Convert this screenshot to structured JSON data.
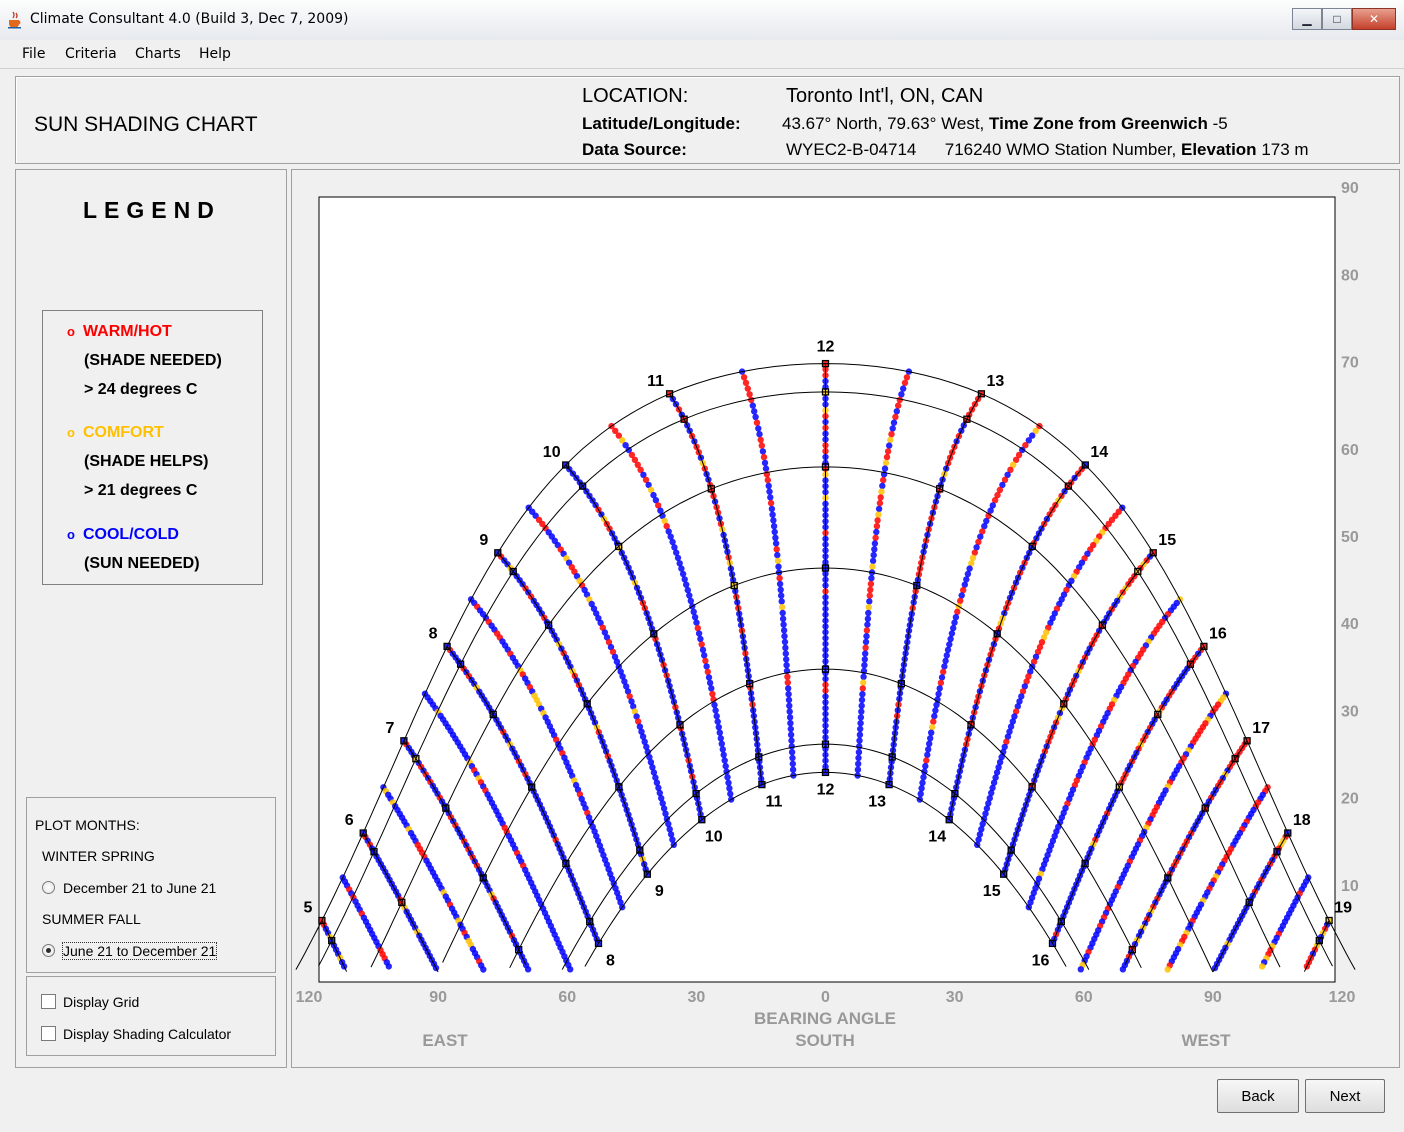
{
  "window": {
    "title": "Climate Consultant 4.0 (Build 3, Dec 7, 2009)",
    "buttons": {
      "minimize_glyph": "▁",
      "maximize_glyph": "□",
      "close_glyph": "✕"
    }
  },
  "menu": [
    "File",
    "Criteria",
    "Charts",
    "Help"
  ],
  "header": {
    "page_title": "SUN SHADING CHART",
    "location_label": "LOCATION:",
    "location_value": "Toronto Int'l, ON, CAN",
    "latlong_label": "Latitude/Longitude:",
    "latlong_value": "43.67° North, 79.63° West,",
    "timezone_label": "Time Zone from Greenwich",
    "timezone_value": "-5",
    "source_label": "Data Source:",
    "source_value": "WYEC2-B-04714",
    "station_value": "716240 WMO Station Number,",
    "elevation_label": "Elevation",
    "elevation_value": "173 m"
  },
  "legend": {
    "title": "LEGEND",
    "items": [
      {
        "label": "WARM/HOT",
        "color": "#ff0000",
        "sub": [
          "(SHADE NEEDED)",
          "> 24 degrees C"
        ]
      },
      {
        "label": "COMFORT",
        "color": "#ffc000",
        "sub": [
          "(SHADE HELPS)",
          "> 21 degrees C"
        ]
      },
      {
        "label": "COOL/COLD",
        "color": "#0000ff",
        "sub": [
          "(SUN NEEDED)"
        ]
      }
    ]
  },
  "plot_months": {
    "title": "PLOT MONTHS:",
    "group1_label": "WINTER SPRING",
    "option1": "December 21 to June 21",
    "group2_label": "SUMMER FALL",
    "option2": "June 21 to December 21",
    "selected": 2
  },
  "options": {
    "display_grid": "Display Grid",
    "display_shading": "Display Shading Calculator"
  },
  "buttons": {
    "back": "Back",
    "next": "Next"
  },
  "chart_data": {
    "type": "scatter",
    "xlabel": "BEARING ANGLE",
    "x_ticks": [
      "120",
      "90",
      "60",
      "30",
      "0",
      "30",
      "60",
      "90",
      "120"
    ],
    "y_ticks": [
      "10",
      "20",
      "30",
      "40",
      "50",
      "60",
      "70",
      "80",
      "90"
    ],
    "xlim": [
      -120,
      120
    ],
    "ylim": [
      0,
      90
    ],
    "direction_labels": [
      "EAST",
      "SOUTH",
      "WEST"
    ],
    "outer_path_hour_labels": [
      "5",
      "6",
      "7",
      "8",
      "9",
      "10",
      "11",
      "12",
      "13",
      "14",
      "15",
      "16",
      "17",
      "18",
      "19"
    ],
    "inner_path_hour_labels": [
      "8",
      "9",
      "10",
      "11",
      "12",
      "13",
      "14",
      "15",
      "16"
    ],
    "sun_paths": {
      "latitude": 43.67,
      "outer_declination_deg": 23.44,
      "inner_declination_deg": -23.44
    },
    "series_colors": {
      "warm": "#ff0000",
      "comfort": "#ffc000",
      "cool": "#0000ff"
    }
  }
}
